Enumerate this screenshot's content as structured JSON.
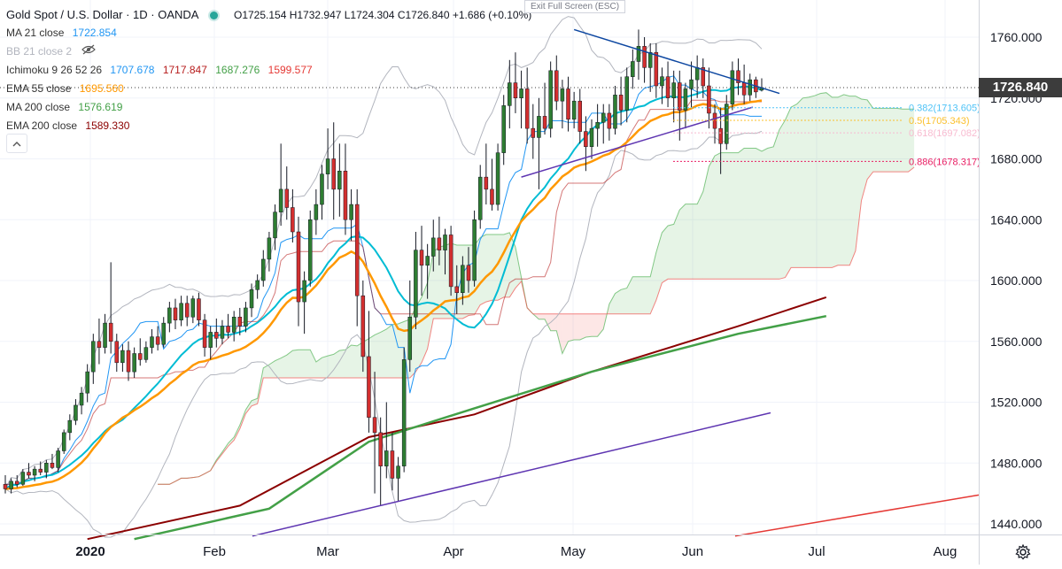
{
  "header": {
    "title": "Gold Spot / U.S. Dollar · 1D · OANDA",
    "ohlc": "O1725.154  H1732.947  L1724.304  C1726.840  +1.686 (+0.10%)",
    "fullscreen_tip": "Exit Full Screen (ESC)"
  },
  "indicators": [
    {
      "label": "MA 21 close",
      "value": "1722.854",
      "color": "#2196f3"
    },
    {
      "label": "BB 21 close 2",
      "value": "",
      "color": "#b2b5be"
    },
    {
      "label": "Ichimoku 9 26 52 26",
      "value": "1707.678  1717.847  1687.276  1599.577",
      "color": "#2196f3"
    },
    {
      "label": "EMA 55 close",
      "value": "1695.560",
      "color": "#ff9800"
    },
    {
      "label": "MA 200 close",
      "value": "1576.619",
      "color": "#43a047"
    },
    {
      "label": "EMA 200 close",
      "value": "1589.330",
      "color": "#8b0000"
    }
  ],
  "ichimoku_values": [
    {
      "text": "1707.678",
      "color": "#2196f3"
    },
    {
      "text": "1717.847",
      "color": "#b71c1c"
    },
    {
      "text": "1687.276",
      "color": "#43a047"
    },
    {
      "text": "1599.577",
      "color": "#e53935"
    }
  ],
  "last_price": "1726.840",
  "fib_levels": [
    {
      "label": "0.382(1713.605)",
      "price": 1713.605,
      "color": "#4fc3f7"
    },
    {
      "label": "0.5(1705.343)",
      "price": 1705.343,
      "color": "#fbc02d"
    },
    {
      "label": "0.618(1697.082)",
      "price": 1697.082,
      "color": "#f8bbd0"
    },
    {
      "label": "0.886(1678.317)",
      "price": 1678.317,
      "color": "#e91e63"
    }
  ],
  "chart_data": {
    "type": "candlestick",
    "symbol": "Gold Spot / U.S. Dollar",
    "interval": "1D",
    "y_axis": {
      "ticks": [
        "1440.000",
        "1480.000",
        "1520.000",
        "1560.000",
        "1600.000",
        "1640.000",
        "1680.000",
        "1720.000",
        "1760.000"
      ],
      "range": [
        1432,
        1786
      ]
    },
    "x_axis": {
      "ticks": [
        "2020",
        "Feb",
        "Mar",
        "Apr",
        "May",
        "Jun",
        "Jul",
        "Aug"
      ]
    },
    "candles": [
      {
        "o": 1466,
        "h": 1472,
        "l": 1460,
        "c": 1463
      },
      {
        "o": 1463,
        "h": 1470,
        "l": 1460,
        "c": 1468
      },
      {
        "o": 1468,
        "h": 1472,
        "l": 1464,
        "c": 1466
      },
      {
        "o": 1466,
        "h": 1476,
        "l": 1465,
        "c": 1474
      },
      {
        "o": 1474,
        "h": 1480,
        "l": 1470,
        "c": 1472
      },
      {
        "o": 1472,
        "h": 1478,
        "l": 1468,
        "c": 1476
      },
      {
        "o": 1476,
        "h": 1481,
        "l": 1472,
        "c": 1474
      },
      {
        "o": 1474,
        "h": 1482,
        "l": 1470,
        "c": 1480
      },
      {
        "o": 1480,
        "h": 1486,
        "l": 1476,
        "c": 1477
      },
      {
        "o": 1477,
        "h": 1490,
        "l": 1474,
        "c": 1488
      },
      {
        "o": 1488,
        "h": 1502,
        "l": 1486,
        "c": 1500
      },
      {
        "o": 1500,
        "h": 1512,
        "l": 1495,
        "c": 1508
      },
      {
        "o": 1508,
        "h": 1522,
        "l": 1505,
        "c": 1518
      },
      {
        "o": 1518,
        "h": 1530,
        "l": 1512,
        "c": 1526
      },
      {
        "o": 1526,
        "h": 1545,
        "l": 1520,
        "c": 1540
      },
      {
        "o": 1540,
        "h": 1565,
        "l": 1532,
        "c": 1560
      },
      {
        "o": 1560,
        "h": 1575,
        "l": 1545,
        "c": 1556
      },
      {
        "o": 1556,
        "h": 1578,
        "l": 1552,
        "c": 1572
      },
      {
        "o": 1572,
        "h": 1612,
        "l": 1552,
        "c": 1560
      },
      {
        "o": 1560,
        "h": 1565,
        "l": 1540,
        "c": 1546
      },
      {
        "o": 1546,
        "h": 1558,
        "l": 1540,
        "c": 1554
      },
      {
        "o": 1554,
        "h": 1560,
        "l": 1534,
        "c": 1540
      },
      {
        "o": 1540,
        "h": 1556,
        "l": 1536,
        "c": 1552
      },
      {
        "o": 1552,
        "h": 1562,
        "l": 1544,
        "c": 1548
      },
      {
        "o": 1548,
        "h": 1560,
        "l": 1546,
        "c": 1556
      },
      {
        "o": 1556,
        "h": 1568,
        "l": 1552,
        "c": 1563
      },
      {
        "o": 1563,
        "h": 1570,
        "l": 1554,
        "c": 1558
      },
      {
        "o": 1558,
        "h": 1576,
        "l": 1556,
        "c": 1572
      },
      {
        "o": 1572,
        "h": 1586,
        "l": 1566,
        "c": 1582
      },
      {
        "o": 1582,
        "h": 1588,
        "l": 1568,
        "c": 1574
      },
      {
        "o": 1574,
        "h": 1590,
        "l": 1570,
        "c": 1585
      },
      {
        "o": 1585,
        "h": 1590,
        "l": 1570,
        "c": 1576
      },
      {
        "o": 1576,
        "h": 1590,
        "l": 1572,
        "c": 1588
      },
      {
        "o": 1588,
        "h": 1592,
        "l": 1570,
        "c": 1574
      },
      {
        "o": 1574,
        "h": 1578,
        "l": 1550,
        "c": 1556
      },
      {
        "o": 1556,
        "h": 1570,
        "l": 1548,
        "c": 1566
      },
      {
        "o": 1566,
        "h": 1575,
        "l": 1556,
        "c": 1562
      },
      {
        "o": 1562,
        "h": 1574,
        "l": 1558,
        "c": 1570
      },
      {
        "o": 1570,
        "h": 1578,
        "l": 1562,
        "c": 1566
      },
      {
        "o": 1566,
        "h": 1580,
        "l": 1560,
        "c": 1576
      },
      {
        "o": 1576,
        "h": 1582,
        "l": 1564,
        "c": 1570
      },
      {
        "o": 1570,
        "h": 1586,
        "l": 1566,
        "c": 1582
      },
      {
        "o": 1582,
        "h": 1598,
        "l": 1576,
        "c": 1594
      },
      {
        "o": 1594,
        "h": 1604,
        "l": 1588,
        "c": 1600
      },
      {
        "o": 1600,
        "h": 1620,
        "l": 1596,
        "c": 1614
      },
      {
        "o": 1614,
        "h": 1632,
        "l": 1606,
        "c": 1628
      },
      {
        "o": 1628,
        "h": 1650,
        "l": 1620,
        "c": 1645
      },
      {
        "o": 1645,
        "h": 1690,
        "l": 1636,
        "c": 1660
      },
      {
        "o": 1660,
        "h": 1675,
        "l": 1640,
        "c": 1648
      },
      {
        "o": 1648,
        "h": 1660,
        "l": 1625,
        "c": 1632
      },
      {
        "o": 1632,
        "h": 1642,
        "l": 1570,
        "c": 1586
      },
      {
        "o": 1586,
        "h": 1606,
        "l": 1565,
        "c": 1600
      },
      {
        "o": 1600,
        "h": 1646,
        "l": 1596,
        "c": 1640
      },
      {
        "o": 1640,
        "h": 1660,
        "l": 1630,
        "c": 1650
      },
      {
        "o": 1650,
        "h": 1676,
        "l": 1640,
        "c": 1670
      },
      {
        "o": 1670,
        "h": 1700,
        "l": 1660,
        "c": 1680
      },
      {
        "o": 1680,
        "h": 1704,
        "l": 1640,
        "c": 1660
      },
      {
        "o": 1660,
        "h": 1690,
        "l": 1642,
        "c": 1672
      },
      {
        "o": 1672,
        "h": 1690,
        "l": 1630,
        "c": 1640
      },
      {
        "o": 1640,
        "h": 1660,
        "l": 1626,
        "c": 1650
      },
      {
        "o": 1650,
        "h": 1660,
        "l": 1570,
        "c": 1590
      },
      {
        "o": 1590,
        "h": 1600,
        "l": 1540,
        "c": 1550
      },
      {
        "o": 1550,
        "h": 1580,
        "l": 1500,
        "c": 1510
      },
      {
        "o": 1510,
        "h": 1540,
        "l": 1460,
        "c": 1500
      },
      {
        "o": 1500,
        "h": 1510,
        "l": 1452,
        "c": 1478
      },
      {
        "o": 1478,
        "h": 1520,
        "l": 1470,
        "c": 1488
      },
      {
        "o": 1488,
        "h": 1500,
        "l": 1462,
        "c": 1470
      },
      {
        "o": 1470,
        "h": 1484,
        "l": 1455,
        "c": 1478
      },
      {
        "o": 1478,
        "h": 1556,
        "l": 1474,
        "c": 1548
      },
      {
        "o": 1548,
        "h": 1600,
        "l": 1540,
        "c": 1576
      },
      {
        "o": 1576,
        "h": 1632,
        "l": 1568,
        "c": 1620
      },
      {
        "o": 1620,
        "h": 1636,
        "l": 1590,
        "c": 1610
      },
      {
        "o": 1610,
        "h": 1624,
        "l": 1588,
        "c": 1616
      },
      {
        "o": 1616,
        "h": 1640,
        "l": 1606,
        "c": 1628
      },
      {
        "o": 1628,
        "h": 1642,
        "l": 1610,
        "c": 1620
      },
      {
        "o": 1620,
        "h": 1634,
        "l": 1604,
        "c": 1630
      },
      {
        "o": 1630,
        "h": 1636,
        "l": 1590,
        "c": 1596
      },
      {
        "o": 1596,
        "h": 1610,
        "l": 1578,
        "c": 1592
      },
      {
        "o": 1592,
        "h": 1616,
        "l": 1584,
        "c": 1610
      },
      {
        "o": 1610,
        "h": 1622,
        "l": 1592,
        "c": 1600
      },
      {
        "o": 1600,
        "h": 1646,
        "l": 1596,
        "c": 1640
      },
      {
        "o": 1640,
        "h": 1676,
        "l": 1634,
        "c": 1668
      },
      {
        "o": 1668,
        "h": 1690,
        "l": 1650,
        "c": 1660
      },
      {
        "o": 1660,
        "h": 1680,
        "l": 1646,
        "c": 1650
      },
      {
        "o": 1650,
        "h": 1690,
        "l": 1646,
        "c": 1684
      },
      {
        "o": 1684,
        "h": 1722,
        "l": 1676,
        "c": 1715
      },
      {
        "o": 1715,
        "h": 1745,
        "l": 1700,
        "c": 1730
      },
      {
        "o": 1730,
        "h": 1750,
        "l": 1710,
        "c": 1720
      },
      {
        "o": 1720,
        "h": 1738,
        "l": 1700,
        "c": 1726
      },
      {
        "o": 1726,
        "h": 1740,
        "l": 1690,
        "c": 1700
      },
      {
        "o": 1700,
        "h": 1716,
        "l": 1680,
        "c": 1694
      },
      {
        "o": 1694,
        "h": 1720,
        "l": 1660,
        "c": 1708
      },
      {
        "o": 1708,
        "h": 1730,
        "l": 1696,
        "c": 1700
      },
      {
        "o": 1700,
        "h": 1744,
        "l": 1694,
        "c": 1738
      },
      {
        "o": 1738,
        "h": 1748,
        "l": 1712,
        "c": 1718
      },
      {
        "o": 1718,
        "h": 1732,
        "l": 1700,
        "c": 1726
      },
      {
        "o": 1726,
        "h": 1734,
        "l": 1698,
        "c": 1706
      },
      {
        "o": 1706,
        "h": 1724,
        "l": 1700,
        "c": 1718
      },
      {
        "o": 1718,
        "h": 1726,
        "l": 1690,
        "c": 1698
      },
      {
        "o": 1698,
        "h": 1708,
        "l": 1672,
        "c": 1688
      },
      {
        "o": 1688,
        "h": 1706,
        "l": 1680,
        "c": 1700
      },
      {
        "o": 1700,
        "h": 1716,
        "l": 1688,
        "c": 1704
      },
      {
        "o": 1704,
        "h": 1716,
        "l": 1690,
        "c": 1710
      },
      {
        "o": 1710,
        "h": 1716,
        "l": 1692,
        "c": 1700
      },
      {
        "o": 1700,
        "h": 1728,
        "l": 1696,
        "c": 1722
      },
      {
        "o": 1722,
        "h": 1734,
        "l": 1702,
        "c": 1712
      },
      {
        "o": 1712,
        "h": 1740,
        "l": 1704,
        "c": 1734
      },
      {
        "o": 1734,
        "h": 1752,
        "l": 1726,
        "c": 1744
      },
      {
        "o": 1744,
        "h": 1765,
        "l": 1732,
        "c": 1754
      },
      {
        "o": 1754,
        "h": 1760,
        "l": 1730,
        "c": 1740
      },
      {
        "o": 1740,
        "h": 1756,
        "l": 1724,
        "c": 1750
      },
      {
        "o": 1750,
        "h": 1756,
        "l": 1720,
        "c": 1728
      },
      {
        "o": 1728,
        "h": 1740,
        "l": 1716,
        "c": 1734
      },
      {
        "o": 1734,
        "h": 1744,
        "l": 1714,
        "c": 1720
      },
      {
        "o": 1720,
        "h": 1738,
        "l": 1704,
        "c": 1730
      },
      {
        "o": 1730,
        "h": 1738,
        "l": 1692,
        "c": 1712
      },
      {
        "o": 1712,
        "h": 1730,
        "l": 1700,
        "c": 1726
      },
      {
        "o": 1726,
        "h": 1744,
        "l": 1714,
        "c": 1732
      },
      {
        "o": 1732,
        "h": 1748,
        "l": 1720,
        "c": 1740
      },
      {
        "o": 1740,
        "h": 1746,
        "l": 1720,
        "c": 1728
      },
      {
        "o": 1728,
        "h": 1740,
        "l": 1700,
        "c": 1710
      },
      {
        "o": 1710,
        "h": 1716,
        "l": 1690,
        "c": 1700
      },
      {
        "o": 1700,
        "h": 1714,
        "l": 1670,
        "c": 1690
      },
      {
        "o": 1690,
        "h": 1722,
        "l": 1686,
        "c": 1716
      },
      {
        "o": 1716,
        "h": 1744,
        "l": 1712,
        "c": 1738
      },
      {
        "o": 1738,
        "h": 1746,
        "l": 1722,
        "c": 1730
      },
      {
        "o": 1730,
        "h": 1742,
        "l": 1716,
        "c": 1722
      },
      {
        "o": 1722,
        "h": 1736,
        "l": 1718,
        "c": 1732
      },
      {
        "o": 1732,
        "h": 1734,
        "l": 1720,
        "c": 1724
      },
      {
        "o": 1725.154,
        "h": 1732.947,
        "l": 1724.304,
        "c": 1726.84
      }
    ],
    "series": [
      {
        "name": "MA 21 close",
        "color": "#2196f3"
      },
      {
        "name": "BB 21 close 2",
        "color": "#b2b5be"
      },
      {
        "name": "Ichimoku 9 26 52 26",
        "color": "#43a047"
      },
      {
        "name": "EMA 55 close",
        "color": "#ff9800"
      },
      {
        "name": "MA 200 close",
        "color": "#43a047"
      },
      {
        "name": "EMA 200 close",
        "color": "#8b0000"
      }
    ],
    "colors": {
      "up": "#26a69a",
      "down": "#ef5350",
      "axis": "#787b86"
    }
  }
}
